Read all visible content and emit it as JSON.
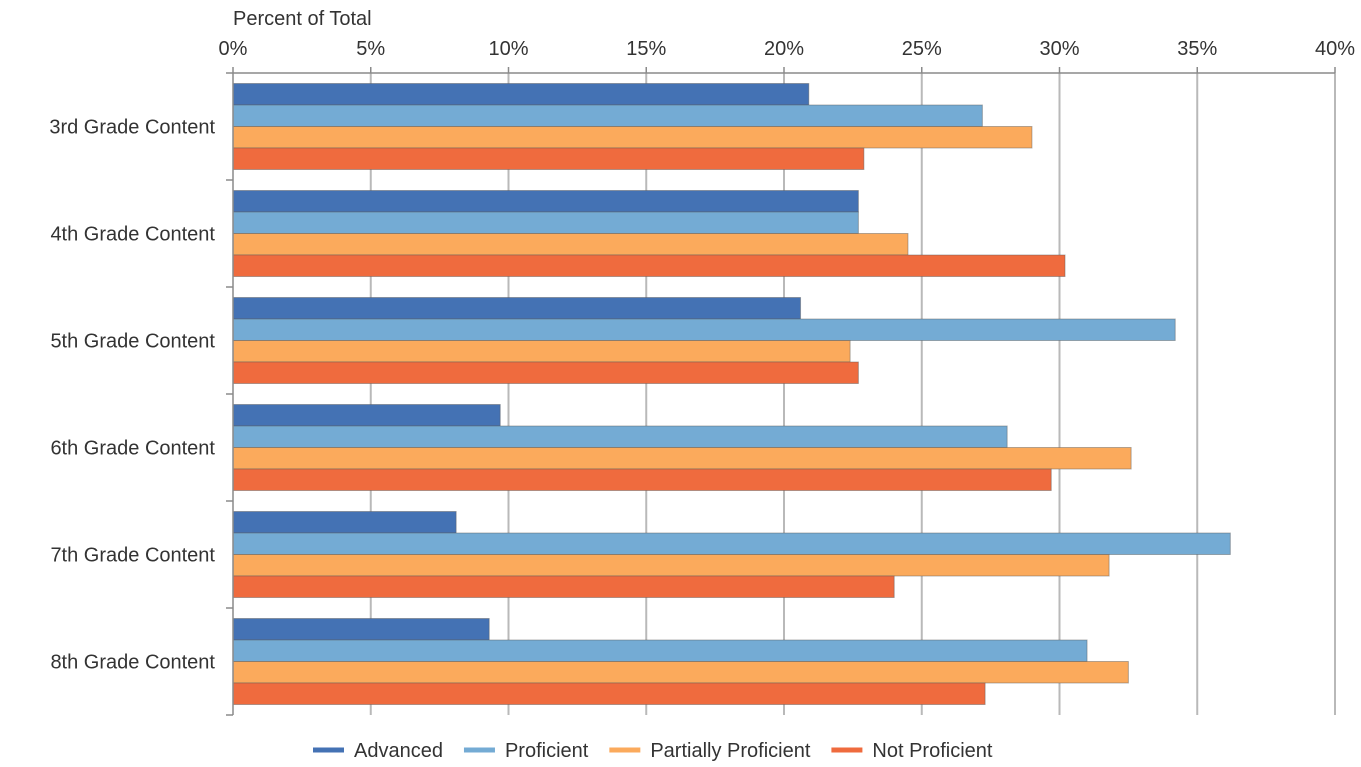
{
  "chart_data": {
    "type": "bar",
    "orientation": "horizontal",
    "title": "",
    "xlabel": "Percent of Total",
    "xlim": [
      0,
      40
    ],
    "x_ticks": [
      "0%",
      "5%",
      "10%",
      "15%",
      "20%",
      "25%",
      "30%",
      "35%",
      "40%"
    ],
    "x_axis_position": "top",
    "grid": true,
    "legend_position": "bottom",
    "categories": [
      "3rd Grade Content",
      "4th Grade Content",
      "5th Grade Content",
      "6th Grade Content",
      "7th Grade Content",
      "8th Grade Content"
    ],
    "series": [
      {
        "name": "Advanced",
        "color": "#4472b4",
        "values": [
          20.9,
          22.7,
          20.6,
          9.7,
          8.1,
          9.3
        ]
      },
      {
        "name": "Proficient",
        "color": "#74abd4",
        "values": [
          27.2,
          22.7,
          34.2,
          28.1,
          36.2,
          31.0
        ]
      },
      {
        "name": "Partially Proficient",
        "color": "#fbaa5c",
        "values": [
          29.0,
          24.5,
          22.4,
          32.6,
          31.8,
          32.5
        ]
      },
      {
        "name": "Not Proficient",
        "color": "#ef6b3e",
        "values": [
          22.9,
          30.2,
          22.7,
          29.7,
          24.0,
          27.3
        ]
      }
    ]
  }
}
